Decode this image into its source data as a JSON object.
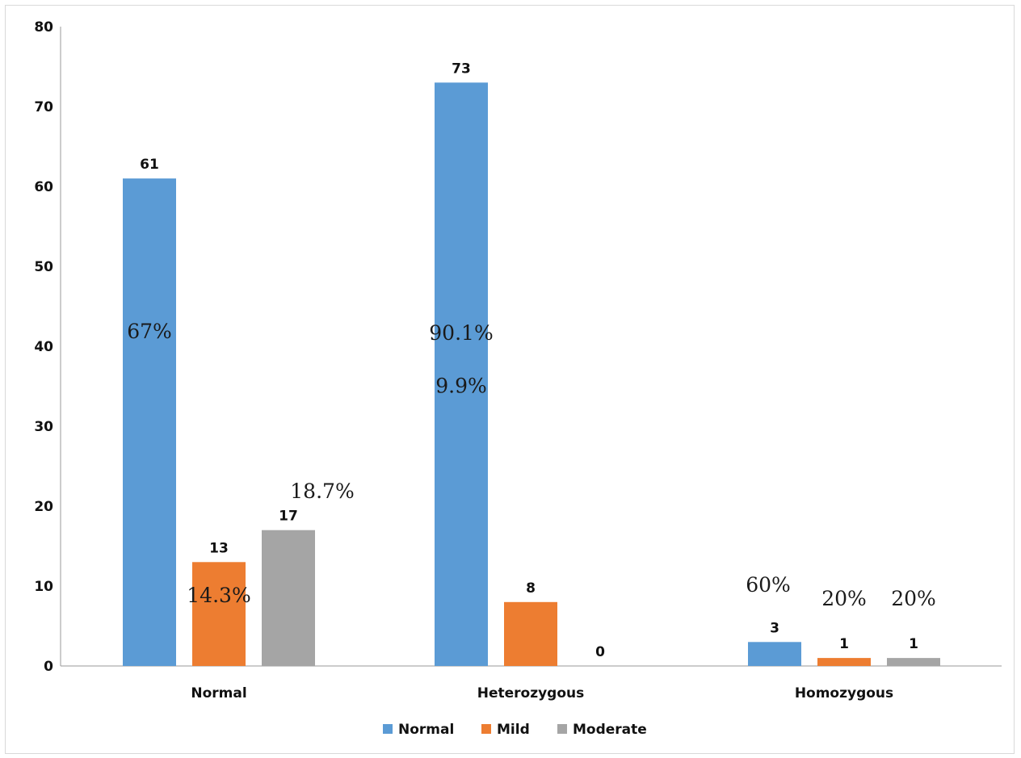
{
  "chart_data": {
    "type": "bar",
    "title": "",
    "xlabel": "",
    "ylabel": "",
    "ylim": [
      0,
      80
    ],
    "yticks": [
      0,
      10,
      20,
      30,
      40,
      50,
      60,
      70,
      80
    ],
    "grid": false,
    "legend_position": "bottom",
    "categories": [
      "Normal",
      "Heterozygous",
      "Homozygous"
    ],
    "series": [
      {
        "name": "Normal",
        "color": "#5b9bd5",
        "values": [
          61,
          73,
          3
        ]
      },
      {
        "name": "Mild",
        "color": "#ed7d31",
        "values": [
          13,
          8,
          1
        ]
      },
      {
        "name": "Moderate",
        "color": "#a5a5a5",
        "values": [
          17,
          0,
          1
        ]
      }
    ],
    "percent_annotations": [
      {
        "text": "67%",
        "category": "Normal",
        "series": "Normal",
        "color": "#1a1a1a"
      },
      {
        "text": "14.3%",
        "category": "Normal",
        "series": "Mild",
        "color": "#1a1a1a"
      },
      {
        "text": "18.7%",
        "category": "Normal",
        "series": "Moderate",
        "color": "#333333"
      },
      {
        "text": "90.1%",
        "category": "Heterozygous",
        "series": "Normal",
        "color": "#8b3a1a"
      },
      {
        "text": "9.9%",
        "category": "Heterozygous",
        "series": "Mild",
        "color": "#1a1a1a"
      },
      {
        "text": "60%",
        "category": "Homozygous",
        "series": "Normal",
        "color": "#333333"
      },
      {
        "text": "20%",
        "category": "Homozygous",
        "series": "Mild",
        "color": "#333333"
      },
      {
        "text": "20%",
        "category": "Homozygous",
        "series": "Moderate",
        "color": "#333333"
      }
    ]
  }
}
